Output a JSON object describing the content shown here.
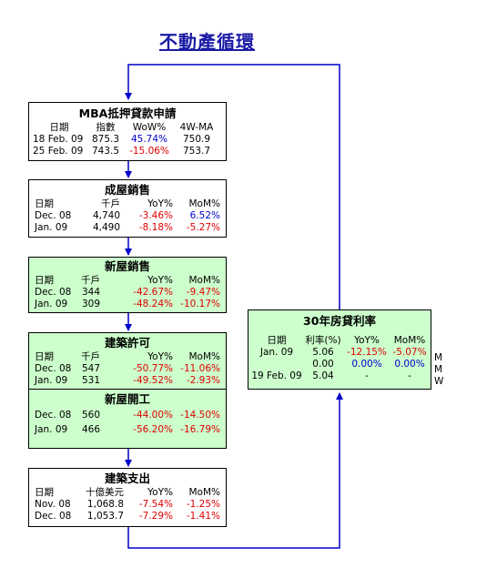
{
  "title": "不動產循環",
  "mba": {
    "title": "MBA抵押貸款申請",
    "headers": [
      "日期",
      "指數",
      "WoW%",
      "4W-MA"
    ],
    "rows": [
      [
        "18 Feb. 09",
        "875.3",
        "45.74%",
        "750.9"
      ],
      [
        "25 Feb. 09",
        "743.5",
        "-15.06%",
        "753.7"
      ]
    ]
  },
  "existing": {
    "title": "成屋銷售",
    "headers": [
      "日期",
      "千戶",
      "YoY%",
      "MoM%"
    ],
    "rows": [
      [
        "Dec. 08",
        "4,740",
        "-3.46%",
        "6.52%"
      ],
      [
        "Jan. 09",
        "4,490",
        "-8.18%",
        "-5.27%"
      ]
    ]
  },
  "newhome": {
    "title": "新屋銷售",
    "headers": [
      "日期",
      "千戶",
      "YoY%",
      "MoM%"
    ],
    "rows": [
      [
        "Dec. 08",
        "344",
        "-42.67%",
        "-9.47%"
      ],
      [
        "Jan. 09",
        "309",
        "-48.24%",
        "-10.17%"
      ]
    ]
  },
  "permits": {
    "title": "建築許可",
    "headers": [
      "日期",
      "千戶",
      "YoY%",
      "MoM%"
    ],
    "rows": [
      [
        "Dec. 08",
        "547",
        "-50.77%",
        "-11.06%"
      ],
      [
        "Jan. 09",
        "531",
        "-49.52%",
        "-2.93%"
      ]
    ]
  },
  "starts": {
    "title": "新屋開工",
    "rows": [
      [
        "Dec. 08",
        "560",
        "-44.00%",
        "-14.50%"
      ],
      [
        "Jan. 09",
        "466",
        "-56.20%",
        "-16.79%"
      ]
    ]
  },
  "spending": {
    "title": "建築支出",
    "headers": [
      "日期",
      "十億美元",
      "YoY%",
      "MoM%"
    ],
    "rows": [
      [
        "Nov. 08",
        "1,068.8",
        "-7.54%",
        "-1.25%"
      ],
      [
        "Dec. 08",
        "1,053.7",
        "-7.29%",
        "-1.41%"
      ]
    ]
  },
  "mortgage": {
    "title": "30年房貸利率",
    "headers": [
      "日期",
      "利率(%)",
      "YoY%",
      "MoM%"
    ],
    "rows": [
      [
        "Jan. 09",
        "5.06",
        "-12.15%",
        "-5.07%"
      ],
      [
        "",
        "0.00",
        "0.00%",
        "0.00%"
      ],
      [
        "19 Feb. 09",
        "5.04",
        "-",
        "-"
      ]
    ],
    "suffixes": [
      "M",
      "M",
      "W"
    ]
  },
  "colors": {
    "title": "#1a1aa6",
    "arrow": "#0000cc",
    "negative": "#e00000",
    "positive": "#0000cc",
    "green_box": "#ccffcc"
  }
}
